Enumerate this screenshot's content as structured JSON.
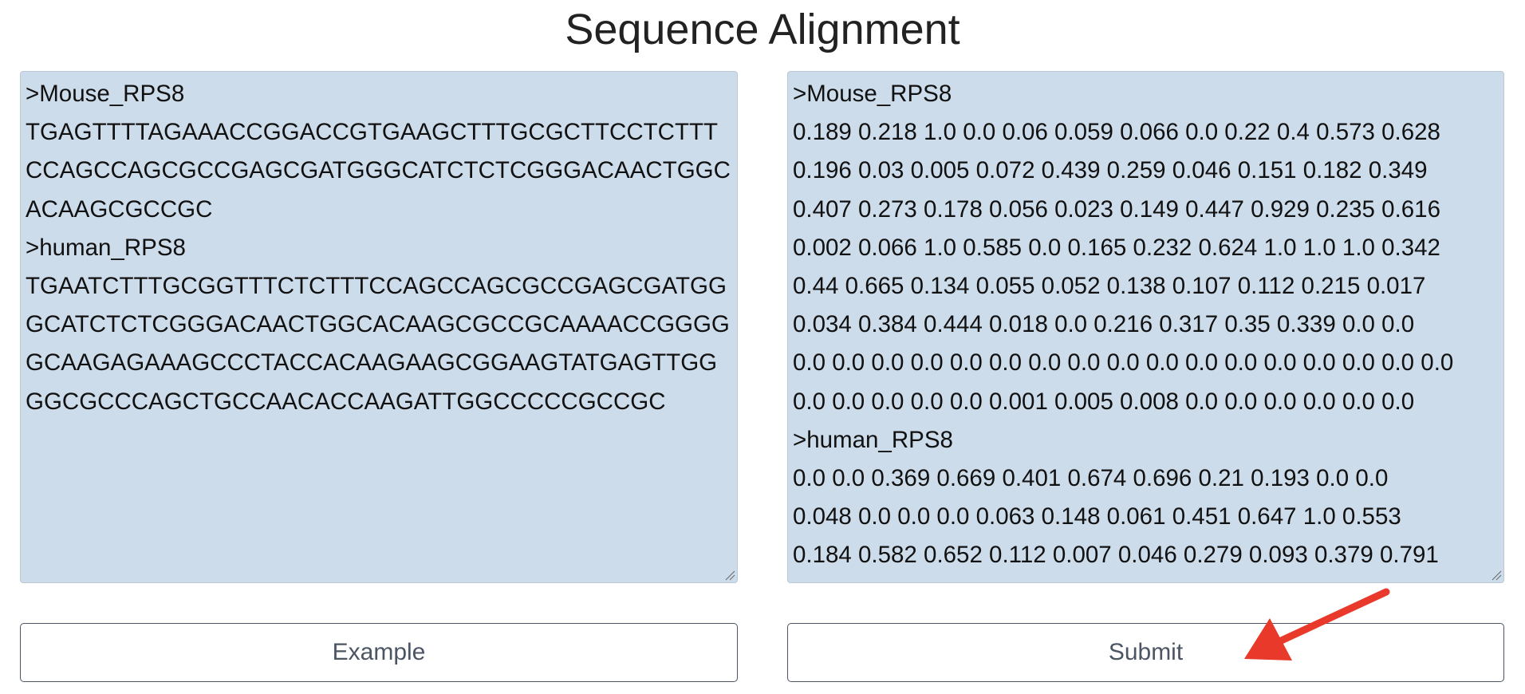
{
  "header": {
    "title": "Sequence Alignment"
  },
  "input": {
    "lines": [
      ">Mouse_RPS8",
      "TGAGTTTTAGAAACCGGACCGTGAAGCTTTGCGCTTCCTCTTT",
      "CCAGCCAGCGCCGAGCGATGGGCATCTCTCGGGACAACTGGC",
      "ACAAGCGCCGC",
      ">human_RPS8",
      "TGAATCTTTGCGGTTTCTCTTTCCAGCCAGCGCCGAGCGATGG",
      "GCATCTCTCGGGACAACTGGCACAAGCGCCGCAAAACCGGGG",
      "GCAAGAGAAAGCCCTACCACAAGAAGCGGAAGTATGAGTTGG",
      "GGCGCCCAGCTGCCAACACCAAGATTGGCCCCCGCCGC"
    ]
  },
  "output": {
    "lines": [
      ">Mouse_RPS8",
      "0.189 0.218 1.0 0.0 0.06 0.059 0.066 0.0 0.22 0.4 0.573 0.628",
      "0.196 0.03 0.005 0.072 0.439 0.259 0.046 0.151 0.182 0.349",
      "0.407 0.273 0.178 0.056 0.023 0.149 0.447 0.929 0.235 0.616",
      "0.002 0.066 1.0 0.585 0.0 0.165 0.232 0.624 1.0 1.0 1.0 0.342",
      "0.44 0.665 0.134 0.055 0.052 0.138 0.107 0.112 0.215 0.017",
      "0.034 0.384 0.444 0.018 0.0 0.216 0.317 0.35 0.339 0.0 0.0",
      "0.0 0.0 0.0 0.0 0.0 0.0 0.0 0.0 0.0 0.0 0.0 0.0 0.0 0.0 0.0 0.0 0.0",
      "0.0 0.0 0.0 0.0 0.0 0.001 0.005 0.008 0.0 0.0 0.0 0.0 0.0 0.0",
      ">human_RPS8",
      "0.0 0.0 0.369 0.669 0.401 0.674 0.696 0.21 0.193 0.0 0.0",
      "0.048 0.0 0.0 0.0 0.063 0.148 0.061 0.451 0.647 1.0 0.553",
      "0.184 0.582 0.652 0.112 0.007 0.046 0.279 0.093 0.379 0.791"
    ]
  },
  "buttons": {
    "example": "Example",
    "submit": "Submit"
  }
}
